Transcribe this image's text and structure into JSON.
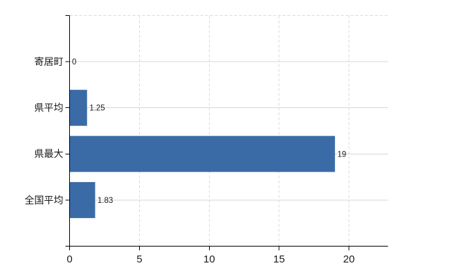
{
  "chart_data": {
    "type": "bar",
    "orientation": "horizontal",
    "title": "",
    "categories": [
      "寄居町",
      "県平均",
      "県最大",
      "全国平均"
    ],
    "values": [
      0,
      1.25,
      19,
      1.83
    ],
    "value_labels": [
      "0",
      "1.25",
      "19",
      "1.83"
    ],
    "x_axis": {
      "ticks": [
        0,
        5,
        10,
        15,
        20
      ],
      "tick_labels": [
        "0",
        "5",
        "10",
        "15",
        "20"
      ],
      "range": [
        0,
        22.8
      ]
    },
    "legend": false,
    "grid": {
      "horizontal": "solid",
      "vertical": "dashed",
      "top_border": "dashed"
    },
    "colors": {
      "bar": "#3a6ba6",
      "axis": "#000000",
      "grid_horizontal": "#d4d8d0",
      "grid_vertical": "#d9d9d5",
      "text": "#1a1a1a",
      "background": "#ffffff"
    }
  }
}
